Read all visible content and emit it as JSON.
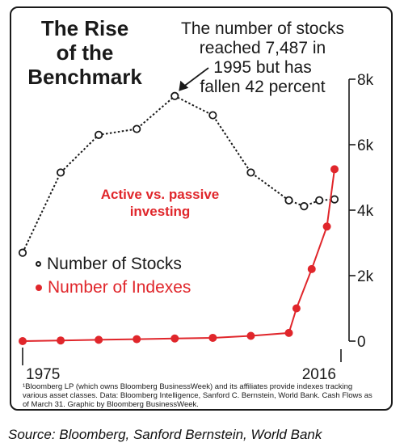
{
  "chart_data": {
    "type": "line",
    "title": "The Rise of the Benchmark",
    "subtitle": "Active vs. passive investing",
    "annotation": "The number of stocks reached 7,487 in 1995 but has fallen 42 percent",
    "x_start_label": "1975",
    "x_end_label": "2016",
    "ylim": [
      0,
      8000
    ],
    "yticks": [
      {
        "value": 0,
        "label": "0"
      },
      {
        "value": 2000,
        "label": "2k"
      },
      {
        "value": 4000,
        "label": "4k"
      },
      {
        "value": 6000,
        "label": "6k"
      },
      {
        "value": 8000,
        "label": "8k"
      }
    ],
    "axis_position": "right",
    "grid": false,
    "legend_position": "middle-left",
    "x": [
      1975,
      1980,
      1985,
      1990,
      1995,
      2000,
      2005,
      2010,
      2012,
      2014,
      2016
    ],
    "series": [
      {
        "name": "Number of Stocks",
        "color": "#1a1a1a",
        "style": "dotted",
        "marker": "hollow-circle",
        "x": [
          1975,
          1980,
          1985,
          1990,
          1995,
          2000,
          2005,
          2010,
          2012,
          2014,
          2016
        ],
        "values": [
          2700,
          5150,
          6300,
          6480,
          7487,
          6900,
          5150,
          4300,
          4120,
          4300,
          4330
        ]
      },
      {
        "name": "Number of Indexes",
        "color": "#e0262b",
        "style": "solid",
        "marker": "filled-circle",
        "x": [
          1975,
          1980,
          1985,
          1990,
          1995,
          2000,
          2005,
          2010,
          2011,
          2013,
          2015,
          2016
        ],
        "values": [
          0,
          20,
          40,
          60,
          80,
          100,
          160,
          250,
          1000,
          2200,
          3500,
          5250
        ]
      }
    ],
    "note": "¹Bloomberg LP (which owns Bloomberg BusinessWeek) and its affiliates provide indexes tracking various asset classes. Data: Bloomberg Intelligence, Sanford C. Bernstein, World Bank. Cash Flows as of March 31. Graphic by Bloomberg BusinessWeek."
  },
  "title_lines": [
    "The Rise",
    "of the",
    "Benchmark"
  ],
  "annotation_lines": [
    "The number of stocks",
    "reached 7,487 in",
    "1995 but has",
    "fallen 42 percent"
  ],
  "subtitle_lines": [
    "Active vs. passive",
    "investing"
  ],
  "source": "Source: Bloomberg, Sanford Bernstein, World Bank"
}
